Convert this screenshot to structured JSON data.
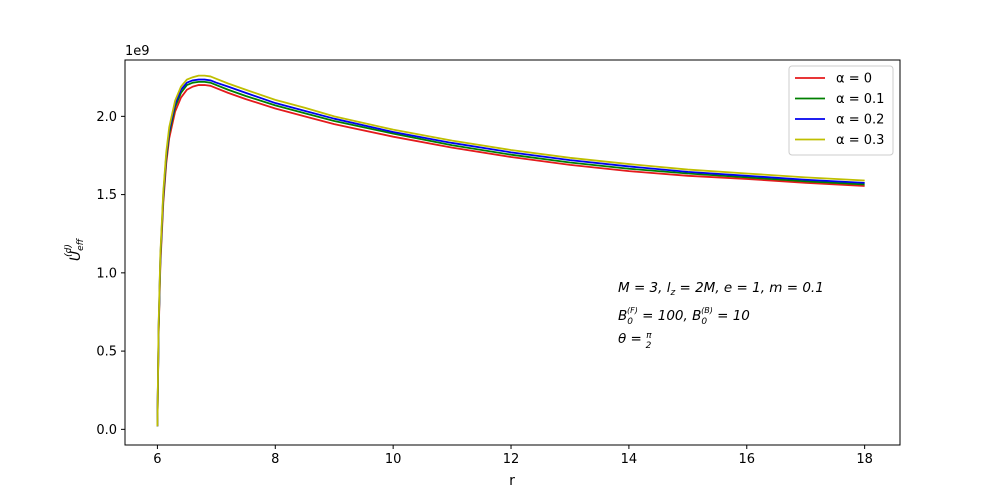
{
  "chart_data": {
    "type": "line",
    "title": "",
    "xlabel": "r",
    "ylabel": "U_eff^(d)",
    "xlim": [
      5.45,
      18.6
    ],
    "ylim": [
      -0.1,
      2.36
    ],
    "y_offset_label": "1e9",
    "x_ticks": [
      6,
      8,
      10,
      12,
      14,
      16,
      18
    ],
    "x_tick_labels": [
      "6",
      "8",
      "10",
      "12",
      "14",
      "16",
      "18"
    ],
    "y_ticks": [
      0.0,
      0.5,
      1.0,
      1.5,
      2.0
    ],
    "y_tick_labels": [
      "0.0",
      "0.5",
      "1.0",
      "1.5",
      "2.0"
    ],
    "grid": false,
    "legend_position": "top-right",
    "x": [
      6.0,
      6.02,
      6.05,
      6.1,
      6.15,
      6.2,
      6.3,
      6.4,
      6.5,
      6.6,
      6.7,
      6.8,
      6.9,
      7.0,
      7.2,
      7.5,
      8.0,
      8.5,
      9.0,
      10.0,
      11.0,
      12.0,
      13.0,
      14.0,
      15.0,
      16.0,
      17.0,
      18.0
    ],
    "series": [
      {
        "name": "α = 0",
        "color": "#e41a1c",
        "values": [
          0.02,
          0.6,
          1.05,
          1.45,
          1.7,
          1.86,
          2.03,
          2.12,
          2.17,
          2.19,
          2.2,
          2.2,
          2.195,
          2.18,
          2.15,
          2.11,
          2.05,
          2.0,
          1.95,
          1.87,
          1.8,
          1.74,
          1.69,
          1.65,
          1.62,
          1.6,
          1.575,
          1.555
        ]
      },
      {
        "name": "α = 0.1",
        "color": "#008000",
        "values": [
          0.02,
          0.62,
          1.08,
          1.48,
          1.73,
          1.89,
          2.06,
          2.15,
          2.2,
          2.215,
          2.22,
          2.22,
          2.215,
          2.2,
          2.17,
          2.13,
          2.07,
          2.02,
          1.97,
          1.89,
          1.815,
          1.755,
          1.705,
          1.665,
          1.635,
          1.61,
          1.585,
          1.565
        ]
      },
      {
        "name": "α = 0.2",
        "color": "#0000ee",
        "values": [
          0.02,
          0.64,
          1.1,
          1.5,
          1.75,
          1.91,
          2.08,
          2.17,
          2.215,
          2.23,
          2.235,
          2.235,
          2.23,
          2.215,
          2.19,
          2.15,
          2.085,
          2.035,
          1.985,
          1.9,
          1.83,
          1.77,
          1.72,
          1.68,
          1.645,
          1.62,
          1.595,
          1.575
        ]
      },
      {
        "name": "α = 0.3",
        "color": "#bfbf00",
        "values": [
          0.02,
          0.66,
          1.12,
          1.52,
          1.77,
          1.93,
          2.1,
          2.19,
          2.235,
          2.25,
          2.26,
          2.26,
          2.255,
          2.24,
          2.21,
          2.17,
          2.105,
          2.055,
          2.0,
          1.915,
          1.845,
          1.785,
          1.735,
          1.695,
          1.66,
          1.635,
          1.61,
          1.59
        ]
      }
    ],
    "annotations": [
      {
        "id": "params1",
        "text": "M = 3,  l_z = 2M,  e = 1,  m = 0.1"
      },
      {
        "id": "params2",
        "text": "B_0^(F) = 100, B_0^(B) = 10"
      },
      {
        "id": "params3",
        "text": "θ = π/2"
      }
    ]
  }
}
